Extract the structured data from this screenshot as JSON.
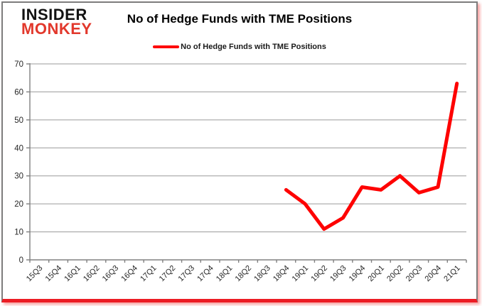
{
  "logo": {
    "line1": "INSIDER",
    "line2": "MONKEY"
  },
  "header": {
    "title": "No of Hedge Funds with TME Positions"
  },
  "legend": {
    "label": "No of Hedge Funds with TME Positions"
  },
  "colors": {
    "series_line": "#fe0000",
    "logo_top": "#121212",
    "logo_bottom": "#e2382c",
    "gridline": "#9a9a9a",
    "axis": "#808080",
    "tick_label": "#262626",
    "bottom_bar": "#ec1c24",
    "frame_border": "#7d7d7d"
  },
  "chart_data": {
    "type": "line",
    "title": "No of Hedge Funds with TME Positions",
    "xlabel": "",
    "ylabel": "",
    "ylim": [
      0,
      70
    ],
    "ytick_step": 10,
    "grid": true,
    "legend_position": "top",
    "categories": [
      "15Q3",
      "15Q4",
      "16Q1",
      "16Q2",
      "16Q3",
      "16Q4",
      "17Q1",
      "17Q2",
      "17Q3",
      "17Q4",
      "18Q1",
      "18Q2",
      "18Q3",
      "18Q4",
      "19Q1",
      "19Q2",
      "19Q3",
      "19Q4",
      "20Q1",
      "20Q2",
      "20Q3",
      "20Q4",
      "21Q1"
    ],
    "series": [
      {
        "name": "No of Hedge Funds with TME Positions",
        "color": "#fe0000",
        "values": [
          null,
          null,
          null,
          null,
          null,
          null,
          null,
          null,
          null,
          null,
          null,
          null,
          null,
          25,
          20,
          11,
          15,
          26,
          25,
          30,
          24,
          26,
          63
        ]
      }
    ]
  }
}
